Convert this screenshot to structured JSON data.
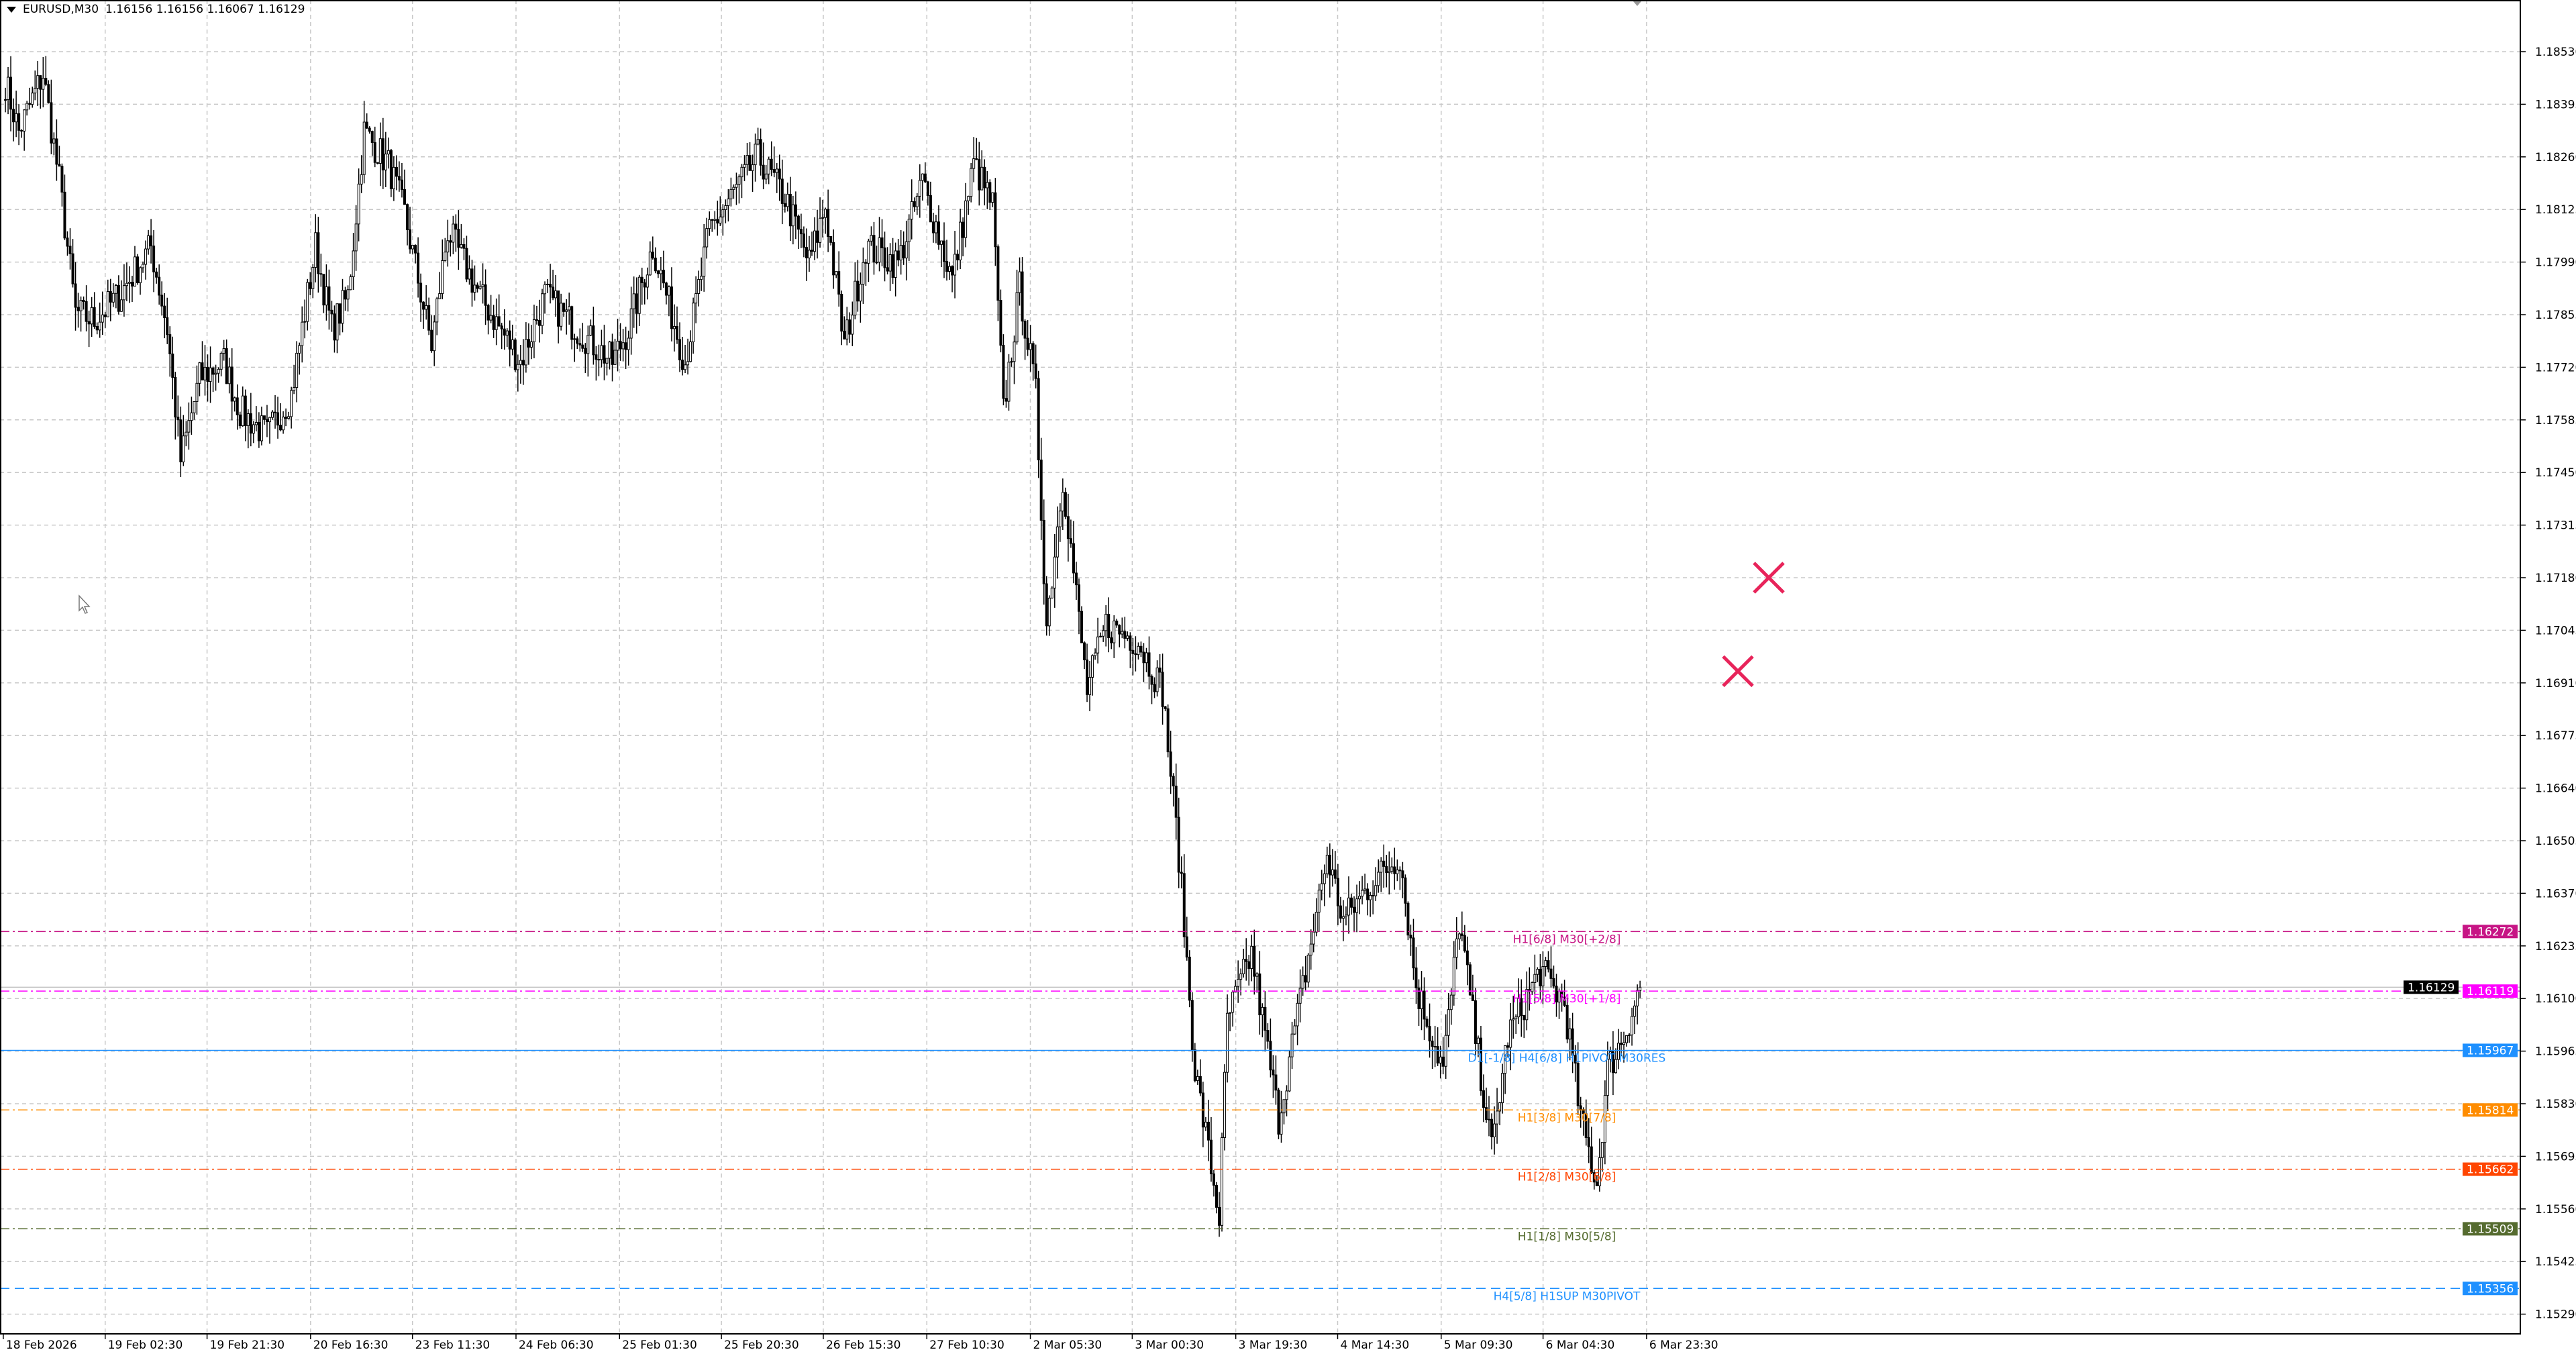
{
  "header": {
    "symbol": "EURUSD,M30",
    "ohlc": "1.16156 1.16156 1.16067 1.16129"
  },
  "chart_data": {
    "type": "candlestick",
    "symbol": "EURUSD",
    "timeframe": "M30",
    "ylim": [
      1.1525,
      1.1862
    ],
    "grid": true,
    "y_ticks": [
      "1.18530",
      "1.18395",
      "1.18260",
      "1.18125",
      "1.17990",
      "1.17855",
      "1.17720",
      "1.17585",
      "1.17450",
      "1.17315",
      "1.17180",
      "1.17045",
      "1.16910",
      "1.16775",
      "1.16640",
      "1.16505",
      "1.16370",
      "1.16235",
      "1.16100",
      "1.15965",
      "1.15830",
      "1.15695",
      "1.15560",
      "1.15425",
      "1.15290"
    ],
    "x_ticks": [
      "18 Feb 2026",
      "19 Feb 02:30",
      "19 Feb 21:30",
      "20 Feb 16:30",
      "23 Feb 11:30",
      "24 Feb 06:30",
      "25 Feb 01:30",
      "25 Feb 20:30",
      "26 Feb 15:30",
      "27 Feb 10:30",
      "2 Mar 05:30",
      "3 Mar 00:30",
      "3 Mar 19:30",
      "4 Mar 14:30",
      "5 Mar 09:30",
      "6 Mar 04:30",
      "6 Mar 23:30"
    ],
    "price_path": [
      {
        "bar": 1,
        "price": 1.18452
      },
      {
        "bar": 6,
        "price": 1.18325
      },
      {
        "bar": 15,
        "price": 1.18473
      },
      {
        "bar": 21,
        "price": 1.18198
      },
      {
        "bar": 27,
        "price": 1.17861
      },
      {
        "bar": 34,
        "price": 1.1784
      },
      {
        "bar": 43,
        "price": 1.17903
      },
      {
        "bar": 55,
        "price": 1.1803
      },
      {
        "bar": 61,
        "price": 1.17819
      },
      {
        "bar": 66,
        "price": 1.17481
      },
      {
        "bar": 73,
        "price": 1.17692
      },
      {
        "bar": 82,
        "price": 1.17734
      },
      {
        "bar": 88,
        "price": 1.17608
      },
      {
        "bar": 98,
        "price": 1.17545
      },
      {
        "bar": 107,
        "price": 1.1765
      },
      {
        "bar": 116,
        "price": 1.1803
      },
      {
        "bar": 122,
        "price": 1.17819
      },
      {
        "bar": 128,
        "price": 1.17903
      },
      {
        "bar": 134,
        "price": 1.18325
      },
      {
        "bar": 143,
        "price": 1.18241
      },
      {
        "bar": 149,
        "price": 1.18114
      },
      {
        "bar": 159,
        "price": 1.17776
      },
      {
        "bar": 165,
        "price": 1.18072
      },
      {
        "bar": 177,
        "price": 1.17903
      },
      {
        "bar": 192,
        "price": 1.17734
      },
      {
        "bar": 201,
        "price": 1.17903
      },
      {
        "bar": 213,
        "price": 1.17819
      },
      {
        "bar": 226,
        "price": 1.17734
      },
      {
        "bar": 232,
        "price": 1.17819
      },
      {
        "bar": 241,
        "price": 1.1803
      },
      {
        "bar": 253,
        "price": 1.17734
      },
      {
        "bar": 262,
        "price": 1.18072
      },
      {
        "bar": 280,
        "price": 1.18262
      },
      {
        "bar": 290,
        "price": 1.18156
      },
      {
        "bar": 299,
        "price": 1.17987
      },
      {
        "bar": 305,
        "price": 1.18135
      },
      {
        "bar": 312,
        "price": 1.17776
      },
      {
        "bar": 320,
        "price": 1.1803
      },
      {
        "bar": 332,
        "price": 1.17987
      },
      {
        "bar": 341,
        "price": 1.18198
      },
      {
        "bar": 352,
        "price": 1.17945
      },
      {
        "bar": 360,
        "price": 1.18241
      },
      {
        "bar": 367,
        "price": 1.18135
      },
      {
        "bar": 371,
        "price": 1.17608
      },
      {
        "bar": 377,
        "price": 1.17924
      },
      {
        "bar": 383,
        "price": 1.1765
      },
      {
        "bar": 387,
        "price": 1.17059
      },
      {
        "bar": 393,
        "price": 1.17439
      },
      {
        "bar": 402,
        "price": 1.1689
      },
      {
        "bar": 409,
        "price": 1.17059
      },
      {
        "bar": 421,
        "price": 1.17017
      },
      {
        "bar": 430,
        "price": 1.1689
      },
      {
        "bar": 436,
        "price": 1.16468
      },
      {
        "bar": 442,
        "price": 1.15919
      },
      {
        "bar": 451,
        "price": 1.1554
      },
      {
        "bar": 454,
        "price": 1.16046
      },
      {
        "bar": 463,
        "price": 1.16215
      },
      {
        "bar": 473,
        "price": 1.15793
      },
      {
        "bar": 482,
        "price": 1.16131
      },
      {
        "bar": 491,
        "price": 1.16468
      },
      {
        "bar": 497,
        "price": 1.163
      },
      {
        "bar": 506,
        "price": 1.16384
      },
      {
        "bar": 518,
        "price": 1.16468
      },
      {
        "bar": 524,
        "price": 1.16131
      },
      {
        "bar": 534,
        "price": 1.15919
      },
      {
        "bar": 540,
        "price": 1.163
      },
      {
        "bar": 546,
        "price": 1.16003
      },
      {
        "bar": 552,
        "price": 1.15709
      },
      {
        "bar": 558,
        "price": 1.16003
      },
      {
        "bar": 570,
        "price": 1.16173
      },
      {
        "bar": 579,
        "price": 1.16088
      },
      {
        "bar": 585,
        "price": 1.15793
      },
      {
        "bar": 591,
        "price": 1.15624
      },
      {
        "bar": 595,
        "price": 1.15919
      },
      {
        "bar": 601,
        "price": 1.16003
      },
      {
        "bar": 607,
        "price": 1.16129
      }
    ],
    "current_price": {
      "value": "1.16129",
      "color": "#000000"
    },
    "levels": [
      {
        "price": 1.16272,
        "tag": "1.16272",
        "label": "H1[6/8] M30[+2/8]",
        "color": "#c71585",
        "style": "dashdot"
      },
      {
        "price": 1.16119,
        "tag": "1.16119",
        "label": "H1[5/8] M30[+1/8]",
        "color": "#ff00ff",
        "style": "dashdot"
      },
      {
        "price": 1.15967,
        "tag": "1.15967",
        "label": "D1[-1/8] H4[6/8] H1PIVOT M30RES",
        "color": "#1e90ff",
        "style": "solid"
      },
      {
        "price": 1.15814,
        "tag": "1.15814",
        "label": "H1[3/8] M30[7/8]",
        "color": "#ff8c00",
        "style": "dashdot"
      },
      {
        "price": 1.15662,
        "tag": "1.15662",
        "label": "H1[2/8] M30[6/8]",
        "color": "#ff4500",
        "style": "dashdot"
      },
      {
        "price": 1.15509,
        "tag": "1.15509",
        "label": "H1[1/8] M30[5/8]",
        "color": "#556b2f",
        "style": "dashdot"
      },
      {
        "price": 1.15356,
        "tag": "1.15356",
        "label": "H4[5/8] H1SUP M30PIVOT",
        "color": "#1e90ff",
        "style": "dashed"
      }
    ],
    "markers": [
      {
        "type": "x-mark",
        "color": "#e8245a",
        "price": 1.1718
      },
      {
        "type": "x-mark",
        "color": "#e8245a",
        "price": 1.1694
      }
    ]
  }
}
